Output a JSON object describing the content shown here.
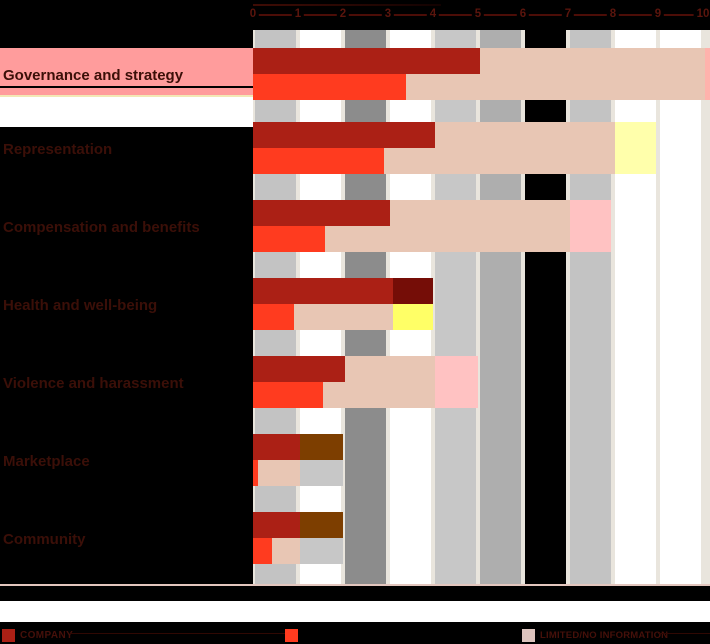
{
  "page": {
    "background": "#000000"
  },
  "axis": {
    "tick_labels": [
      "0",
      "1",
      "2",
      "3",
      "4",
      "5",
      "6",
      "7",
      "8",
      "9",
      "10"
    ],
    "min": 0,
    "max": 10
  },
  "categories": [
    "Governance and strategy",
    "Representation",
    "Compensation and benefits",
    "Health and well-being",
    "Violence and harassment",
    "Marketplace",
    "Community"
  ],
  "legend": {
    "items": [
      {
        "label": "COMPANY",
        "color": "#ab2015"
      },
      {
        "label": "",
        "color": "#ff3b1f"
      },
      {
        "label": "LIMITED/NO INFORMATION",
        "color": "#dcc3bd"
      }
    ]
  },
  "palette": {
    "darkred": "#ab2015",
    "red": "#ff3b1f",
    "salmon": "#e8c6b4",
    "pink": "#ffc2c2",
    "edge_pink": "#ffb2ac",
    "paleyellow": "#ffffab",
    "yellow": "#ffff66",
    "maroon": "#750d07",
    "brown": "#7d3e00",
    "gray": "#c7c7c7"
  },
  "background_columns": [
    "#c3c3c3",
    "#ffffff",
    "#8c8c8c",
    "#ffffff",
    "#c7c7c7",
    "#aeaeae",
    "#000000",
    "#c3c3c3",
    "#ffffff",
    "#ffffff"
  ],
  "row_highlight_color": "#ff9c9c",
  "chart_data": {
    "type": "bar",
    "orientation": "horizontal",
    "xlim": [
      0,
      10
    ],
    "x_tick_labels": [
      "0",
      "1",
      "2",
      "3",
      "4",
      "5",
      "6",
      "7",
      "8",
      "9",
      "10"
    ],
    "grid": "vertical-bands",
    "legend_position": "bottom",
    "categories": [
      "Governance and strategy",
      "Representation",
      "Compensation and benefits",
      "Health and well-being",
      "Violence and harassment",
      "Marketplace",
      "Community"
    ],
    "series": [
      {
        "name": "COMPANY",
        "values": [
          5.0,
          4.0,
          3.0,
          3.1,
          2.0,
          1.0,
          1.0
        ]
      },
      {
        "name": "",
        "values": [
          3.4,
          2.9,
          1.6,
          0.9,
          1.55,
          0.1,
          0.4
        ]
      }
    ],
    "info_band_extents": [
      10,
      8,
      7,
      3.1,
      4,
      1.05,
      1.05
    ],
    "rows": [
      {
        "label": "Governance and strategy",
        "bar1": [
          {
            "to": 5.05,
            "c": "darkred"
          },
          {
            "to": 10.05,
            "c": "salmon"
          },
          {
            "to": 10.25,
            "c": "edge_pink"
          }
        ],
        "bar2": [
          {
            "to": 3.4,
            "c": "red"
          },
          {
            "to": 10.05,
            "c": "salmon"
          },
          {
            "to": 10.25,
            "c": "edge_pink"
          }
        ]
      },
      {
        "label": "Representation",
        "bar1": [
          {
            "to": 4.05,
            "c": "darkred"
          },
          {
            "to": 8.05,
            "c": "salmon"
          },
          {
            "to": 8.95,
            "c": "paleyellow"
          }
        ],
        "bar2": [
          {
            "to": 2.9,
            "c": "red"
          },
          {
            "to": 8.05,
            "c": "salmon"
          },
          {
            "to": 8.95,
            "c": "paleyellow"
          }
        ]
      },
      {
        "label": "Compensation and benefits",
        "bar1": [
          {
            "to": 3.05,
            "c": "darkred"
          },
          {
            "to": 7.05,
            "c": "salmon"
          },
          {
            "to": 7.95,
            "c": "pink"
          }
        ],
        "bar2": [
          {
            "to": 1.6,
            "c": "red"
          },
          {
            "to": 7.05,
            "c": "salmon"
          },
          {
            "to": 7.95,
            "c": "pink"
          }
        ]
      },
      {
        "label": "Health and well-being",
        "bar1": [
          {
            "to": 3.1,
            "c": "darkred"
          },
          {
            "to": 4.0,
            "c": "maroon"
          }
        ],
        "bar2": [
          {
            "to": 0.9,
            "c": "red"
          },
          {
            "to": 3.1,
            "c": "salmon"
          },
          {
            "to": 4.0,
            "c": "yellow"
          }
        ]
      },
      {
        "label": "Violence and harassment",
        "bar1": [
          {
            "to": 2.05,
            "c": "darkred"
          },
          {
            "to": 4.05,
            "c": "salmon"
          },
          {
            "to": 5.0,
            "c": "pink"
          }
        ],
        "bar2": [
          {
            "to": 1.55,
            "c": "red"
          },
          {
            "to": 4.05,
            "c": "salmon"
          },
          {
            "to": 5.0,
            "c": "pink"
          }
        ]
      },
      {
        "label": "Marketplace",
        "bar1": [
          {
            "to": 1.05,
            "c": "darkred"
          },
          {
            "to": 2.0,
            "c": "brown"
          }
        ],
        "bar2": [
          {
            "to": 0.1,
            "c": "red"
          },
          {
            "to": 1.05,
            "c": "salmon"
          },
          {
            "to": 2.0,
            "c": "gray"
          }
        ]
      },
      {
        "label": "Community",
        "bar1": [
          {
            "to": 1.05,
            "c": "darkred"
          },
          {
            "to": 2.0,
            "c": "brown"
          }
        ],
        "bar2": [
          {
            "to": 0.42,
            "c": "red"
          },
          {
            "to": 1.05,
            "c": "salmon"
          },
          {
            "to": 2.0,
            "c": "gray"
          }
        ]
      }
    ]
  }
}
